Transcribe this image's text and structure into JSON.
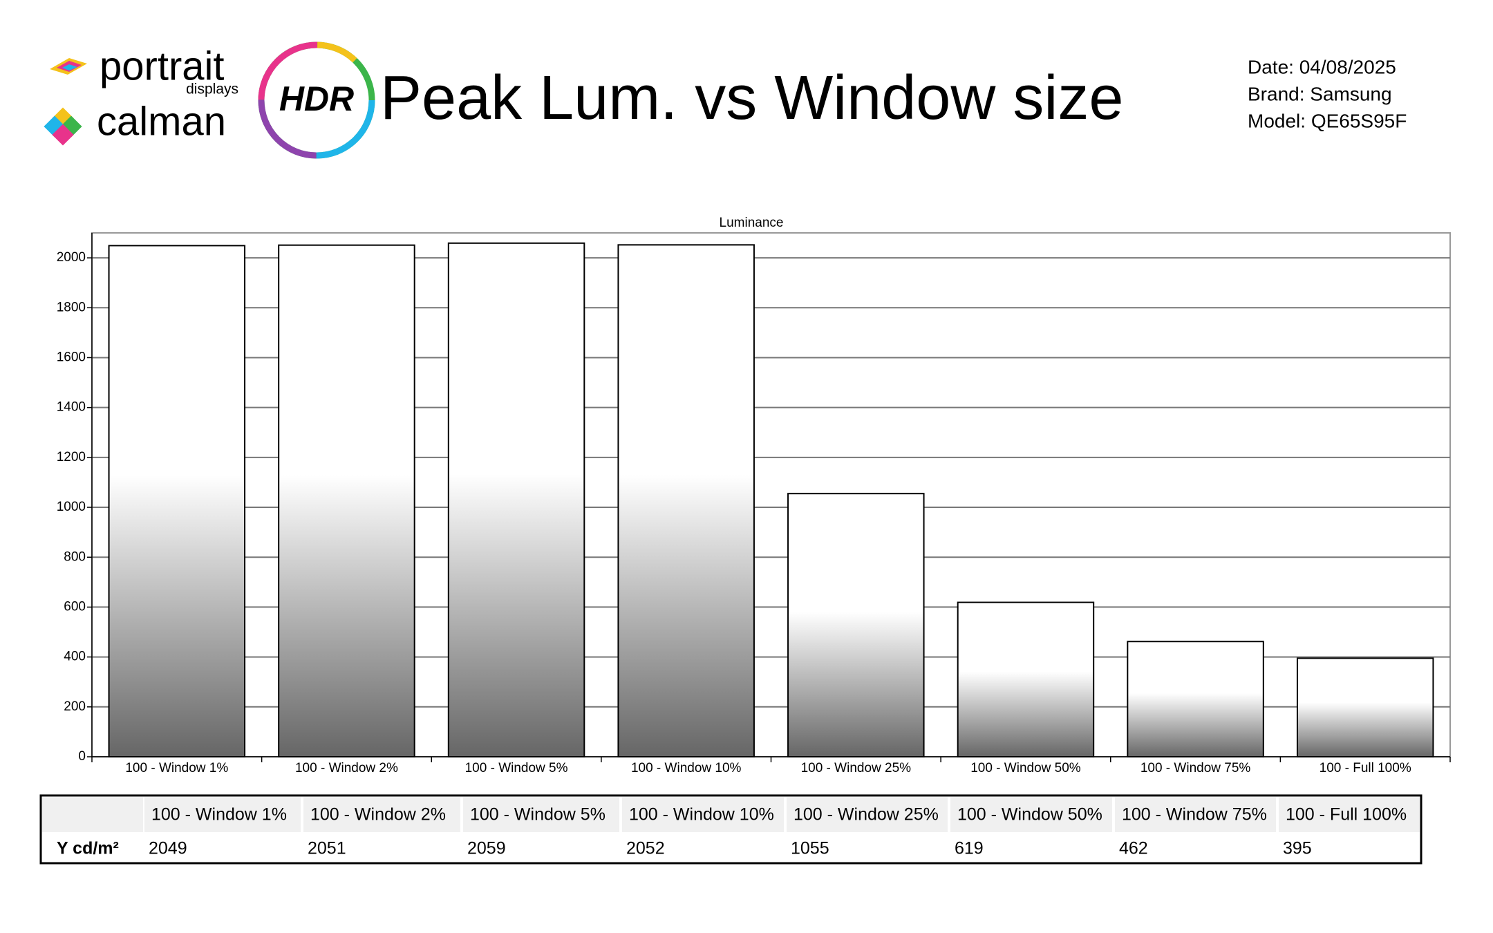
{
  "header": {
    "brand_top": "portrait",
    "brand_top_sub": "displays",
    "brand_bottom": "calman",
    "badge": "HDR",
    "title": "Peak Lum. vs Window size",
    "date": "Date: 04/08/2025",
    "brand": "Brand: Samsung",
    "model": "Model: QE65S95F"
  },
  "chart_data": {
    "type": "bar",
    "title": "Luminance",
    "categories": [
      "100 - Window  1%",
      "100 - Window  2%",
      "100 - Window  5%",
      "100 - Window 10%",
      "100 - Window 25%",
      "100 - Window 50%",
      "100 - Window 75%",
      "100 - Full  100%"
    ],
    "values": [
      2049,
      2051,
      2059,
      2052,
      1055,
      619,
      462,
      395
    ],
    "ylim": [
      0,
      2100
    ],
    "yticks": [
      0,
      200,
      400,
      600,
      800,
      1000,
      1200,
      1400,
      1600,
      1800,
      2000
    ],
    "grid": true,
    "color": "#666666"
  },
  "table": {
    "row_label": "Y cd/m²"
  }
}
